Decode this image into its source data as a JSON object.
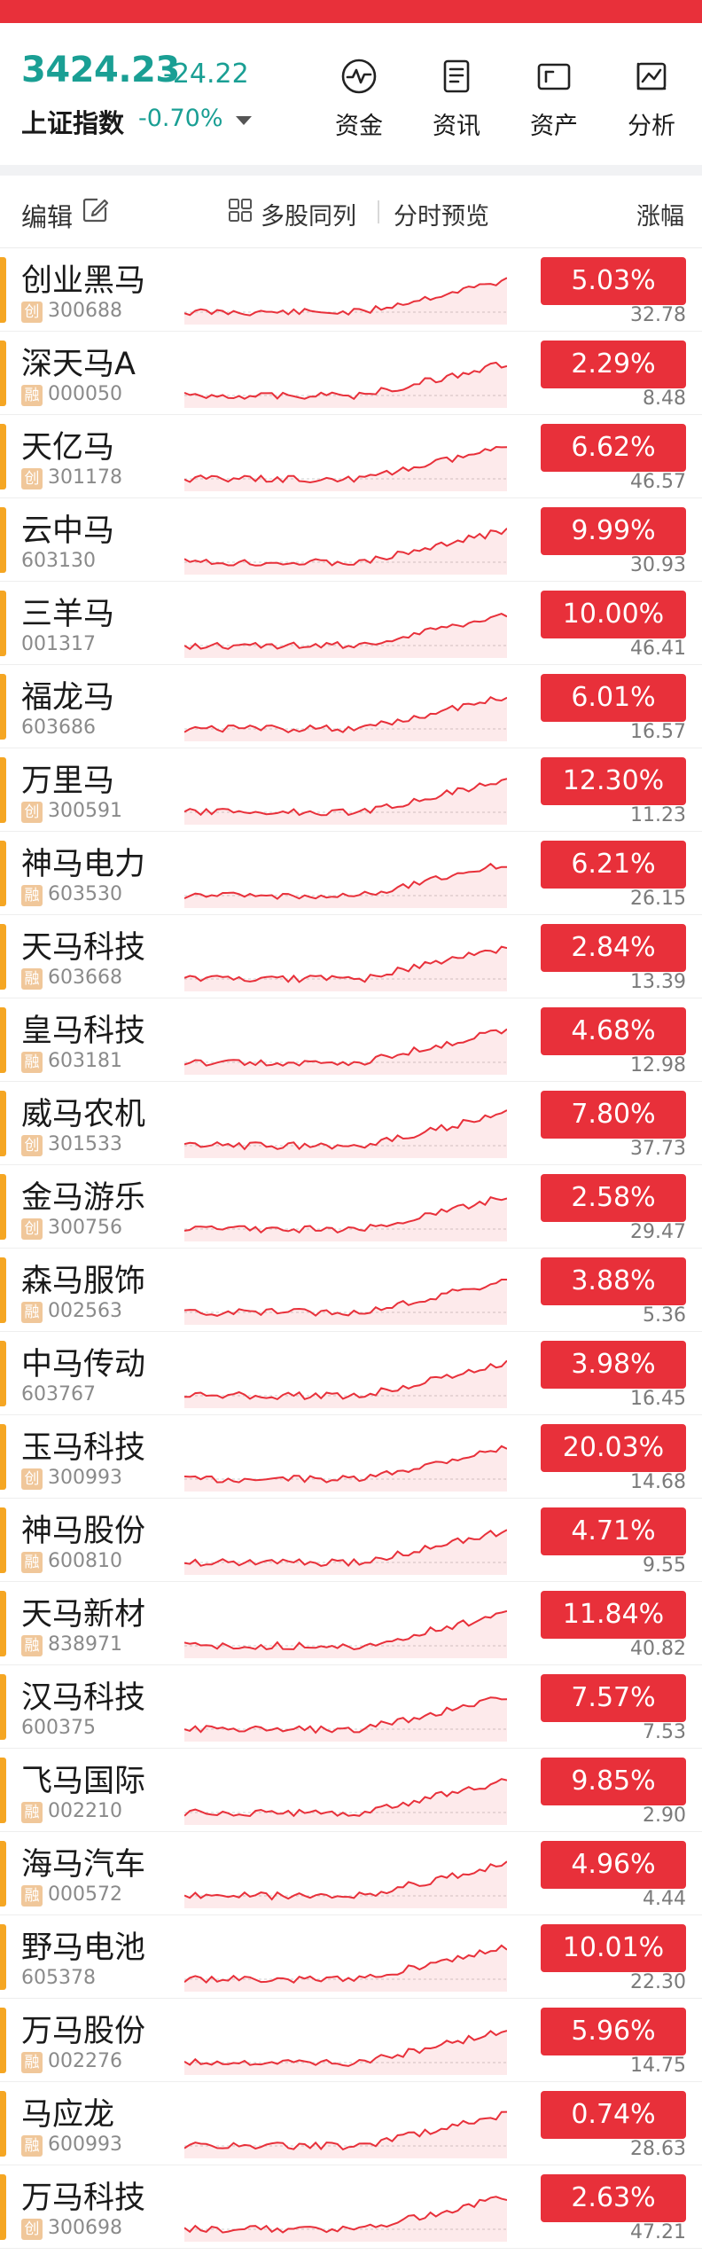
{
  "index": {
    "value": "3424.23",
    "change": "-24.22",
    "name": "上证指数",
    "pct": "-0.70%"
  },
  "nav": [
    {
      "label": "资金",
      "icon": "pulse-circle-icon"
    },
    {
      "label": "资讯",
      "icon": "news-document-icon"
    },
    {
      "label": "资产",
      "icon": "wallet-card-icon"
    },
    {
      "label": "分析",
      "icon": "chart-analysis-icon"
    }
  ],
  "list_header": {
    "edit": "编辑",
    "multi": "多股同列",
    "preview": "分时预览",
    "change": "涨幅"
  },
  "colors": {
    "up": "#e8303a",
    "index_down": "#1a9f94",
    "marker": "#f5a623",
    "tag": "#f0c79a"
  },
  "stocks": [
    {
      "name": "创业黑马",
      "tag": "创",
      "code": "300688",
      "pct": "5.03%",
      "price": "32.78"
    },
    {
      "name": "深天马A",
      "tag": "融",
      "code": "000050",
      "pct": "2.29%",
      "price": "8.48"
    },
    {
      "name": "天亿马",
      "tag": "创",
      "code": "301178",
      "pct": "6.62%",
      "price": "46.57"
    },
    {
      "name": "云中马",
      "tag": "",
      "code": "603130",
      "pct": "9.99%",
      "price": "30.93"
    },
    {
      "name": "三羊马",
      "tag": "",
      "code": "001317",
      "pct": "10.00%",
      "price": "46.41"
    },
    {
      "name": "福龙马",
      "tag": "",
      "code": "603686",
      "pct": "6.01%",
      "price": "16.57"
    },
    {
      "name": "万里马",
      "tag": "创",
      "code": "300591",
      "pct": "12.30%",
      "price": "11.23"
    },
    {
      "name": "神马电力",
      "tag": "融",
      "code": "603530",
      "pct": "6.21%",
      "price": "26.15"
    },
    {
      "name": "天马科技",
      "tag": "融",
      "code": "603668",
      "pct": "2.84%",
      "price": "13.39"
    },
    {
      "name": "皇马科技",
      "tag": "融",
      "code": "603181",
      "pct": "4.68%",
      "price": "12.98"
    },
    {
      "name": "威马农机",
      "tag": "创",
      "code": "301533",
      "pct": "7.80%",
      "price": "37.73"
    },
    {
      "name": "金马游乐",
      "tag": "创",
      "code": "300756",
      "pct": "2.58%",
      "price": "29.47"
    },
    {
      "name": "森马服饰",
      "tag": "融",
      "code": "002563",
      "pct": "3.88%",
      "price": "5.36"
    },
    {
      "name": "中马传动",
      "tag": "",
      "code": "603767",
      "pct": "3.98%",
      "price": "16.45"
    },
    {
      "name": "玉马科技",
      "tag": "创",
      "code": "300993",
      "pct": "20.03%",
      "price": "14.68"
    },
    {
      "name": "神马股份",
      "tag": "融",
      "code": "600810",
      "pct": "4.71%",
      "price": "9.55"
    },
    {
      "name": "天马新材",
      "tag": "融",
      "code": "838971",
      "pct": "11.84%",
      "price": "40.82"
    },
    {
      "name": "汉马科技",
      "tag": "",
      "code": "600375",
      "pct": "7.57%",
      "price": "7.53"
    },
    {
      "name": "飞马国际",
      "tag": "融",
      "code": "002210",
      "pct": "9.85%",
      "price": "2.90"
    },
    {
      "name": "海马汽车",
      "tag": "融",
      "code": "000572",
      "pct": "4.96%",
      "price": "4.44"
    },
    {
      "name": "野马电池",
      "tag": "",
      "code": "605378",
      "pct": "10.01%",
      "price": "22.30"
    },
    {
      "name": "万马股份",
      "tag": "融",
      "code": "002276",
      "pct": "5.96%",
      "price": "14.75"
    },
    {
      "name": "马应龙",
      "tag": "融",
      "code": "600993",
      "pct": "0.74%",
      "price": "28.63"
    },
    {
      "name": "万马科技",
      "tag": "创",
      "code": "300698",
      "pct": "2.63%",
      "price": "47.21"
    }
  ]
}
